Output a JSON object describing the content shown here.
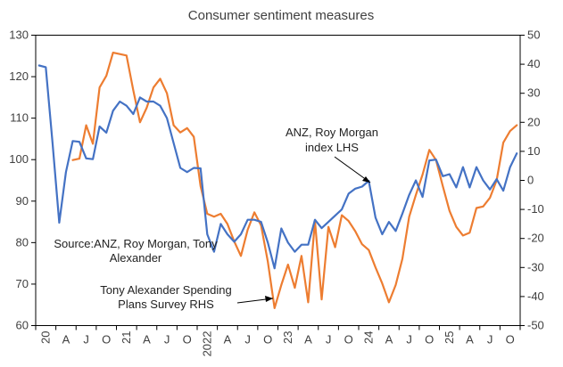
{
  "chart_data": {
    "type": "line",
    "title": "Consumer sentiment measures",
    "x_tick_labels": [
      "20",
      "A",
      "J",
      "O",
      "21",
      "A",
      "J",
      "O",
      "2022",
      "A",
      "J",
      "O",
      "23",
      "A",
      "J",
      "O",
      "24",
      "A",
      "J",
      "O",
      "25",
      "A",
      "J",
      "O"
    ],
    "ylim_left": [
      60,
      130
    ],
    "yticks_left": [
      60,
      70,
      80,
      90,
      100,
      110,
      120,
      130
    ],
    "ylim_right": [
      -50,
      50
    ],
    "yticks_right": [
      -50,
      -40,
      -30,
      -20,
      -10,
      0,
      10,
      20,
      30,
      40,
      50
    ],
    "series": [
      {
        "name": "ANZ, Roy Morgan index LHS",
        "axis": "left",
        "color": "#4472c4",
        "values": [
          122.7,
          122.3,
          104.0,
          84.8,
          97.0,
          104.5,
          104.3,
          100.3,
          100.1,
          108.0,
          106.5,
          111.8,
          114.0,
          113.0,
          111.0,
          115.0,
          114.0,
          114.0,
          113.0,
          110.0,
          104.0,
          98.0,
          97.0,
          98.0,
          97.9,
          82.0,
          77.8,
          84.5,
          82.0,
          80.2,
          82.0,
          85.5,
          85.5,
          85.0,
          80.0,
          73.8,
          83.4,
          80.0,
          77.8,
          79.5,
          79.5,
          85.5,
          83.5,
          85.0,
          86.5,
          88.0,
          91.8,
          93.0,
          93.5,
          94.9,
          86.0,
          82.0,
          85.0,
          82.8,
          87.0,
          91.5,
          95.0,
          91.0,
          99.8,
          100.0,
          96.0,
          96.5,
          93.3,
          98.2,
          93.3,
          98.2,
          95.0,
          92.8,
          95.3,
          92.5,
          98.2,
          101.5
        ]
      },
      {
        "name": "Tony Alexander Spending Plans Survey RHS",
        "axis": "right",
        "color": "#ed7d31",
        "values": [
          null,
          null,
          null,
          null,
          null,
          7.0,
          7.5,
          19.0,
          12.6,
          32.0,
          36.0,
          44.0,
          43.5,
          43.0,
          31.0,
          20.0,
          25.0,
          32.0,
          35.0,
          30.0,
          19.0,
          16.5,
          18.0,
          15.0,
          -2.0,
          -11.5,
          -12.5,
          -11.5,
          -15.0,
          -21.0,
          -26.0,
          -17.0,
          -11.0,
          -15.5,
          -28.0,
          -44.0,
          -36.0,
          -29.0,
          -37.0,
          -26.0,
          -42.0,
          -14.0,
          -41.0,
          -16.0,
          -23.0,
          -12.0,
          -14.0,
          -17.5,
          -22.0,
          -24.0,
          -30.0,
          -35.5,
          -42.0,
          -36.0,
          -27.0,
          -12.5,
          -5.0,
          2.0,
          10.5,
          7.0,
          -2.0,
          -10.5,
          -16.0,
          -19.0,
          -18.0,
          -9.5,
          -9.0,
          -6.0,
          0.0,
          13.0,
          17.0,
          19.0
        ]
      }
    ],
    "annotations": {
      "anz_lines": [
        "ANZ, Roy Morgan",
        "index LHS"
      ],
      "source_lines": [
        "Source:ANZ, Roy Morgan, Tony",
        "Alexander"
      ],
      "tony_lines": [
        "Tony Alexander Spending",
        "Plans Survey RHS"
      ]
    },
    "grid": false,
    "legend": "none"
  }
}
